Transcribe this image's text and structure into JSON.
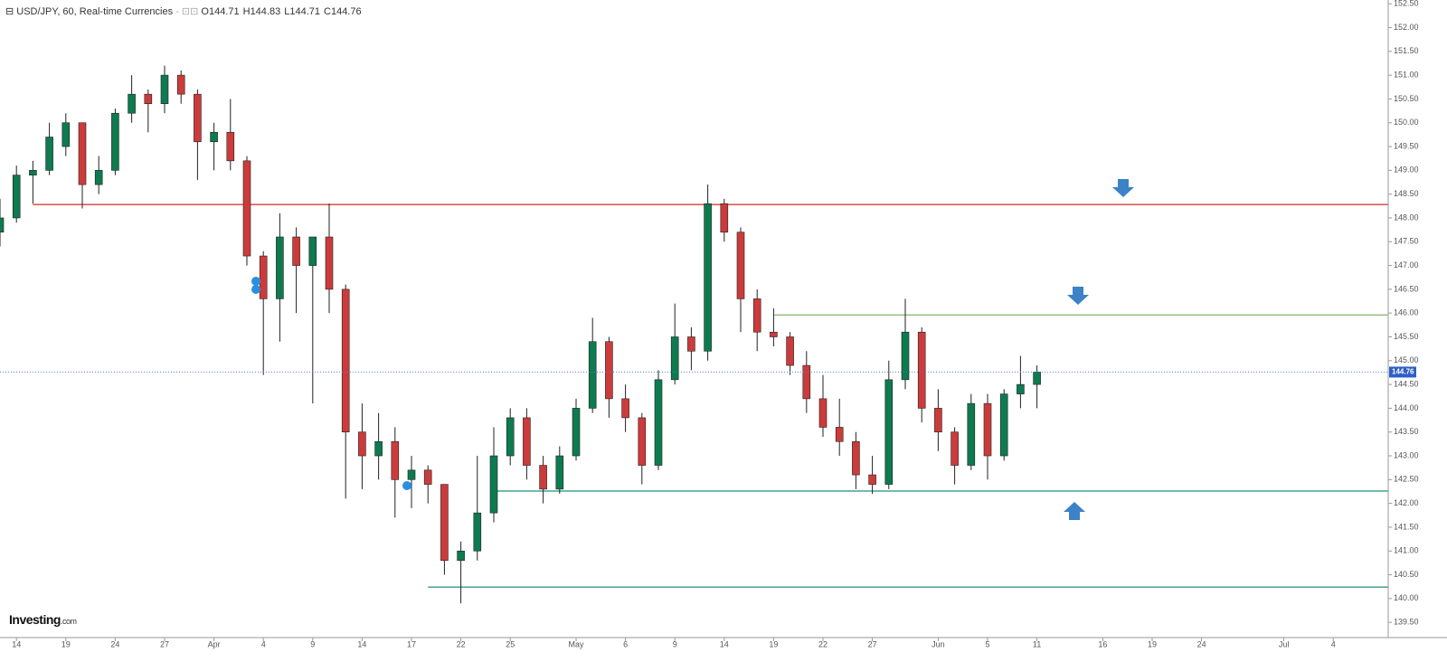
{
  "header": {
    "title": "USD/JPY, 60, Real-time Currencies",
    "ohlc": [
      {
        "label": "O",
        "value": "144.71"
      },
      {
        "label": "H",
        "value": "144.83"
      },
      {
        "label": "L",
        "value": "144.71"
      },
      {
        "label": "C",
        "value": "144.76"
      }
    ]
  },
  "logo": {
    "name": "Investing",
    "suffix": ".com"
  },
  "chart_data": {
    "type": "candlestick",
    "categories": [
      null,
      "14",
      null,
      null,
      "19",
      null,
      null,
      "24",
      null,
      null,
      "27",
      null,
      null,
      "Apr",
      null,
      null,
      "4",
      null,
      null,
      "9",
      null,
      null,
      "14",
      null,
      null,
      "17",
      null,
      null,
      "22",
      null,
      null,
      "25",
      null,
      null,
      null,
      "May",
      null,
      null,
      "6",
      null,
      null,
      "9",
      null,
      null,
      "14",
      null,
      null,
      "19",
      null,
      null,
      "22",
      null,
      null,
      "27",
      null,
      null,
      null,
      "Jun",
      null,
      null,
      "5",
      null,
      null,
      "11",
      null,
      null,
      null,
      "16",
      null,
      null,
      "19",
      null,
      null,
      "24",
      null,
      null,
      null,
      null,
      "Jul",
      null,
      null,
      "4",
      null,
      null,
      null
    ],
    "open": [
      147.7,
      148.0,
      148.9,
      149.0,
      149.5,
      150.0,
      148.7,
      149.0,
      150.2,
      150.6,
      150.4,
      151.0,
      150.6,
      149.6,
      149.8,
      149.2,
      147.2,
      146.3,
      147.6,
      147.0,
      147.6,
      146.5,
      143.5,
      143.0,
      143.3,
      142.5,
      142.7,
      142.4,
      140.8,
      141.0,
      141.8,
      143.0,
      143.8,
      142.8,
      142.3,
      143.0,
      144.0,
      145.4,
      144.2,
      143.8,
      142.8,
      144.6,
      145.5,
      145.2,
      148.3,
      147.7,
      146.3,
      145.6,
      145.5,
      144.9,
      144.2,
      143.6,
      143.3,
      142.6,
      142.4,
      144.6,
      145.6,
      144.0,
      143.5,
      142.8,
      144.1,
      143.0,
      144.3,
      144.5,
      null,
      null,
      null,
      null,
      null,
      null,
      null,
      null,
      null,
      null,
      null,
      null,
      null,
      null,
      null,
      null,
      null,
      null,
      null,
      null,
      null
    ],
    "high": [
      148.4,
      149.1,
      149.2,
      150.0,
      150.2,
      150.0,
      149.3,
      150.3,
      151.0,
      150.7,
      151.2,
      151.1,
      150.7,
      150.0,
      150.5,
      149.3,
      147.3,
      148.1,
      147.8,
      147.5,
      148.3,
      146.6,
      144.1,
      143.9,
      143.6,
      143.0,
      142.8,
      142.4,
      141.2,
      143.0,
      143.6,
      144.0,
      144.0,
      143.0,
      143.2,
      144.2,
      145.9,
      145.5,
      144.5,
      143.9,
      144.8,
      146.2,
      145.7,
      148.7,
      148.4,
      147.8,
      146.5,
      146.1,
      145.6,
      145.2,
      144.7,
      144.2,
      143.5,
      143.0,
      145.0,
      146.3,
      145.7,
      144.4,
      143.6,
      144.3,
      144.3,
      144.4,
      145.1,
      144.9,
      null,
      null,
      null,
      null,
      null,
      null,
      null,
      null,
      null,
      null,
      null,
      null,
      null,
      null,
      null,
      null,
      null,
      null,
      null,
      null,
      null
    ],
    "low": [
      147.4,
      147.9,
      148.3,
      148.9,
      149.3,
      148.2,
      148.5,
      148.9,
      150.0,
      149.8,
      150.2,
      150.4,
      148.8,
      149.0,
      149.0,
      147.0,
      144.7,
      145.4,
      146.0,
      144.1,
      146.0,
      142.1,
      142.3,
      142.5,
      141.7,
      141.9,
      142.0,
      140.5,
      139.9,
      140.8,
      141.6,
      142.8,
      142.5,
      142.0,
      142.2,
      142.9,
      143.9,
      143.8,
      143.5,
      142.4,
      142.7,
      144.5,
      144.8,
      145.0,
      147.5,
      145.6,
      145.2,
      145.3,
      144.7,
      143.9,
      143.4,
      143.0,
      142.3,
      142.2,
      142.3,
      144.4,
      143.7,
      143.1,
      142.4,
      142.7,
      142.5,
      142.9,
      144.0,
      144.0,
      null,
      null,
      null,
      null,
      null,
      null,
      null,
      null,
      null,
      null,
      null,
      null,
      null,
      null,
      null,
      null,
      null,
      null,
      null,
      null,
      null
    ],
    "close": [
      148.0,
      148.9,
      149.0,
      149.7,
      150.0,
      148.7,
      149.0,
      150.2,
      150.6,
      150.4,
      151.0,
      150.6,
      149.6,
      149.8,
      149.2,
      147.2,
      146.3,
      147.6,
      147.0,
      147.6,
      146.5,
      143.5,
      143.0,
      143.3,
      142.5,
      142.7,
      142.4,
      140.8,
      141.0,
      141.8,
      143.0,
      143.8,
      142.8,
      142.3,
      143.0,
      144.0,
      145.4,
      144.2,
      143.8,
      142.8,
      144.6,
      145.5,
      145.2,
      148.3,
      147.7,
      146.3,
      145.6,
      145.5,
      144.9,
      144.2,
      143.6,
      143.3,
      142.6,
      142.4,
      144.6,
      145.6,
      144.0,
      143.5,
      142.8,
      144.1,
      143.0,
      144.3,
      144.5,
      144.76,
      null,
      null,
      null,
      null,
      null,
      null,
      null,
      null,
      null,
      null,
      null,
      null,
      null,
      null,
      null,
      null,
      null,
      null,
      null,
      null,
      null
    ],
    "up_color": "#0e7a50",
    "down_color": "#cc3b3b",
    "levels": [
      {
        "value": 148.28,
        "from": 2,
        "color": "#e05a5a"
      },
      {
        "value": 145.96,
        "from": 47,
        "color": "#9dbf86"
      },
      {
        "value": 142.26,
        "from": 30,
        "color": "#4fab9c"
      },
      {
        "value": 140.24,
        "from": 26,
        "color": "#4fab9c"
      }
    ],
    "last_price": 144.76,
    "ylim": [
      139.18,
      152.58
    ],
    "yticks": [
      {
        "value": 139.5,
        "label": "139.50"
      },
      {
        "value": 140,
        "label": "140.00"
      },
      {
        "value": 140.5,
        "label": "140.50"
      },
      {
        "value": 141,
        "label": "141.00"
      },
      {
        "value": 141.5,
        "label": "141.50"
      },
      {
        "value": 142,
        "label": "142.00"
      },
      {
        "value": 142.5,
        "label": "142.50"
      },
      {
        "value": 143,
        "label": "143.00"
      },
      {
        "value": 143.5,
        "label": "143.50"
      },
      {
        "value": 144,
        "label": "144.00"
      },
      {
        "value": 144.5,
        "label": "144.50"
      },
      {
        "value": 145,
        "label": "145.00"
      },
      {
        "value": 145.5,
        "label": "145.50"
      },
      {
        "value": 146,
        "label": "146.00"
      },
      {
        "value": 146.5,
        "label": "146.50"
      },
      {
        "value": 147,
        "label": "147.00"
      },
      {
        "value": 147.5,
        "label": "147.50"
      },
      {
        "value": 148,
        "label": "148.00"
      },
      {
        "value": 148.5,
        "label": "148.50"
      },
      {
        "value": 149,
        "label": "149.00"
      },
      {
        "value": 149.5,
        "label": "149.50"
      },
      {
        "value": 150,
        "label": "150.00"
      },
      {
        "value": 150.5,
        "label": "150.50"
      },
      {
        "value": 151,
        "label": "151.00"
      },
      {
        "value": 151.5,
        "label": "151.50"
      },
      {
        "value": 152,
        "label": "152.00"
      },
      {
        "value": 152.5,
        "label": "152.50"
      }
    ]
  }
}
